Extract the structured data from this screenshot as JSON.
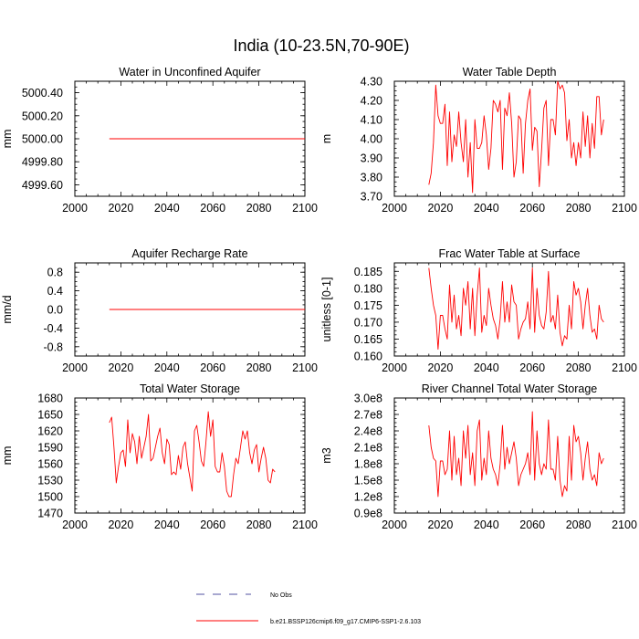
{
  "figure": {
    "title": "India (10-23.5N,70-90E)",
    "line_color": "#ff0000",
    "obs_color": "#5050a0"
  },
  "legend": {
    "items": [
      {
        "label": "No Obs",
        "style": "dashed"
      },
      {
        "label": "b.e21.BSSP126cmip6.f09_g17.CMIP6-SSP1-2.6.103",
        "style": "solid"
      }
    ]
  },
  "chart_data": [
    {
      "type": "line",
      "title": "Water in Unconfined Aquifer",
      "ylabel": "mm",
      "xlim": [
        2000,
        2100
      ],
      "ylim": [
        4999.5,
        5000.5
      ],
      "xticks": [
        "2000",
        "2020",
        "2040",
        "2060",
        "2080",
        "2100"
      ],
      "yticks": [
        4999.6,
        4999.8,
        5000.0,
        5000.2,
        5000.4
      ],
      "ytick_labels": [
        "4999.60",
        "4999.80",
        "5000.00",
        "5000.20",
        "5000.40"
      ],
      "x_start": 2015,
      "values": [
        5000.0,
        5000.0,
        5000.0,
        5000.0,
        5000.0,
        5000.0,
        5000.0,
        5000.0,
        5000.0,
        5000.0,
        5000.0,
        5000.0,
        5000.0,
        5000.0,
        5000.0,
        5000.0,
        5000.0,
        5000.0,
        5000.0,
        5000.0,
        5000.0,
        5000.0,
        5000.0,
        5000.0,
        5000.0,
        5000.0,
        5000.0,
        5000.0,
        5000.0,
        5000.0,
        5000.0,
        5000.0,
        5000.0,
        5000.0,
        5000.0,
        5000.0,
        5000.0,
        5000.0,
        5000.0,
        5000.0,
        5000.0,
        5000.0,
        5000.0,
        5000.0,
        5000.0,
        5000.0,
        5000.0,
        5000.0,
        5000.0,
        5000.0,
        5000.0,
        5000.0,
        5000.0,
        5000.0,
        5000.0,
        5000.0,
        5000.0,
        5000.0,
        5000.0,
        5000.0,
        5000.0,
        5000.0,
        5000.0,
        5000.0,
        5000.0,
        5000.0,
        5000.0,
        5000.0,
        5000.0,
        5000.0,
        5000.0,
        5000.0,
        5000.0,
        5000.0,
        5000.0,
        5000.0,
        5000.0,
        5000.0,
        5000.0,
        5000.0,
        5000.0,
        5000.0,
        5000.0,
        5000.0,
        5000.0,
        5000.0
      ]
    },
    {
      "type": "line",
      "title": "Water Table Depth",
      "ylabel": "m",
      "xlim": [
        2000,
        2100
      ],
      "ylim": [
        3.7,
        4.3
      ],
      "xticks": [
        "2000",
        "2020",
        "2040",
        "2060",
        "2080",
        "2100"
      ],
      "yticks": [
        3.7,
        3.8,
        3.9,
        4.0,
        4.1,
        4.2,
        4.3
      ],
      "ytick_labels": [
        "3.70",
        "3.80",
        "3.90",
        "4.00",
        "4.10",
        "4.20",
        "4.30"
      ],
      "x_start": 2015,
      "values": [
        3.76,
        3.82,
        3.98,
        4.28,
        4.12,
        4.08,
        4.08,
        4.18,
        3.86,
        4.14,
        3.88,
        4.02,
        3.96,
        4.14,
        3.98,
        3.88,
        4.1,
        3.8,
        3.98,
        3.72,
        4.1,
        3.95,
        3.95,
        3.98,
        4.12,
        4.02,
        3.84,
        3.95,
        4.2,
        4.18,
        4.14,
        4.2,
        3.84,
        4.16,
        4.12,
        4.24,
        4.08,
        3.8,
        3.88,
        4.12,
        4.1,
        3.82,
        4.08,
        4.2,
        4.26,
        3.94,
        4.06,
        4.04,
        3.75,
        3.94,
        4.16,
        4.2,
        3.86,
        4.1,
        4.1,
        4.02,
        4.3,
        4.26,
        4.28,
        4.24,
        3.99,
        4.1,
        3.9,
        3.98,
        3.86,
        3.98,
        3.9,
        4.14,
        3.96,
        4.12,
        3.9,
        4.08,
        3.95,
        4.22,
        4.22,
        4.02,
        4.1
      ]
    },
    {
      "type": "line",
      "title": "Aquifer Recharge Rate",
      "ylabel": "mm/d",
      "xlim": [
        2000,
        2100
      ],
      "ylim": [
        -1.0,
        1.0
      ],
      "xticks": [
        "2000",
        "2020",
        "2040",
        "2060",
        "2080",
        "2100"
      ],
      "yticks": [
        -0.8,
        -0.4,
        0.0,
        0.4,
        0.8
      ],
      "ytick_labels": [
        "-0.8",
        "-0.4",
        "0.0",
        "0.4",
        "0.8"
      ],
      "x_start": 2015,
      "values": [
        0.0,
        0.0,
        0.0,
        0.0,
        0.0,
        0.0,
        0.0,
        0.0,
        0.0,
        0.0,
        0.0,
        0.0,
        0.0,
        0.0,
        0.0,
        0.0,
        0.0,
        0.0,
        0.0,
        0.0,
        0.0,
        0.0,
        0.0,
        0.0,
        0.0,
        0.0,
        0.0,
        0.0,
        0.0,
        0.0,
        0.0,
        0.0,
        0.0,
        0.0,
        0.0,
        0.0,
        0.0,
        0.0,
        0.0,
        0.0,
        0.0,
        0.0,
        0.0,
        0.0,
        0.0,
        0.0,
        0.0,
        0.0,
        0.0,
        0.0,
        0.0,
        0.0,
        0.0,
        0.0,
        0.0,
        0.0,
        0.0,
        0.0,
        0.0,
        0.0,
        0.0,
        0.0,
        0.0,
        0.0,
        0.0,
        0.0,
        0.0,
        0.0,
        0.0,
        0.0,
        0.0,
        0.0,
        0.0,
        0.0,
        0.0,
        0.0,
        0.0,
        0.0,
        0.0,
        0.0,
        0.0,
        0.0,
        0.0,
        0.0,
        0.0,
        0.0
      ]
    },
    {
      "type": "line",
      "title": "Frac Water Table at Surface",
      "ylabel": "unitless [0-1]",
      "xlim": [
        2000,
        2100
      ],
      "ylim": [
        0.16,
        0.1875
      ],
      "xticks": [
        "2000",
        "2020",
        "2040",
        "2060",
        "2080",
        "2100"
      ],
      "yticks": [
        0.16,
        0.165,
        0.17,
        0.175,
        0.18,
        0.185
      ],
      "ytick_labels": [
        "0.160",
        "0.165",
        "0.170",
        "0.175",
        "0.180",
        "0.185"
      ],
      "x_start": 2015,
      "values": [
        0.186,
        0.18,
        0.175,
        0.172,
        0.162,
        0.172,
        0.172,
        0.168,
        0.165,
        0.181,
        0.17,
        0.178,
        0.168,
        0.172,
        0.166,
        0.18,
        0.175,
        0.182,
        0.168,
        0.18,
        0.166,
        0.178,
        0.186,
        0.167,
        0.172,
        0.169,
        0.18,
        0.175,
        0.171,
        0.169,
        0.165,
        0.171,
        0.182,
        0.17,
        0.176,
        0.17,
        0.181,
        0.176,
        0.175,
        0.165,
        0.168,
        0.17,
        0.171,
        0.176,
        0.168,
        0.186,
        0.167,
        0.18,
        0.172,
        0.169,
        0.168,
        0.173,
        0.185,
        0.17,
        0.172,
        0.168,
        0.178,
        0.167,
        0.163,
        0.166,
        0.165,
        0.175,
        0.168,
        0.182,
        0.178,
        0.18,
        0.176,
        0.168,
        0.175,
        0.18,
        0.172,
        0.167,
        0.168,
        0.165,
        0.175,
        0.171,
        0.17
      ]
    },
    {
      "type": "line",
      "title": "Total Water Storage",
      "ylabel": "mm",
      "xlim": [
        2000,
        2100
      ],
      "ylim": [
        1470,
        1680
      ],
      "xticks": [
        "2000",
        "2020",
        "2040",
        "2060",
        "2080",
        "2100"
      ],
      "yticks": [
        1470,
        1500,
        1530,
        1560,
        1590,
        1620,
        1650,
        1680
      ],
      "ytick_labels": [
        "1470",
        "1500",
        "1530",
        "1560",
        "1590",
        "1620",
        "1650",
        "1680"
      ],
      "x_start": 2015,
      "values": [
        1635,
        1645,
        1590,
        1525,
        1555,
        1580,
        1585,
        1555,
        1640,
        1580,
        1615,
        1600,
        1560,
        1610,
        1570,
        1590,
        1610,
        1650,
        1565,
        1570,
        1590,
        1610,
        1625,
        1580,
        1560,
        1605,
        1595,
        1540,
        1545,
        1540,
        1575,
        1550,
        1590,
        1600,
        1560,
        1535,
        1510,
        1620,
        1630,
        1600,
        1565,
        1555,
        1600,
        1655,
        1610,
        1640,
        1555,
        1545,
        1545,
        1580,
        1555,
        1510,
        1500,
        1500,
        1540,
        1570,
        1560,
        1590,
        1620,
        1605,
        1620,
        1580,
        1560,
        1585,
        1595,
        1545,
        1570,
        1590,
        1570,
        1530,
        1525,
        1550,
        1545
      ]
    },
    {
      "type": "line",
      "title": "River Channel Total Water Storage",
      "ylabel": "m3",
      "xlim": [
        2000,
        2100
      ],
      "ylim": [
        0.9,
        3.0
      ],
      "xticks": [
        "2000",
        "2020",
        "2040",
        "2060",
        "2080",
        "2100"
      ],
      "yticks": [
        0.9,
        1.2,
        1.5,
        1.8,
        2.1,
        2.4,
        2.7,
        3.0
      ],
      "ytick_labels": [
        "0.9e8",
        "1.2e8",
        "1.5e8",
        "1.8e8",
        "2.1e8",
        "2.4e8",
        "2.7e8",
        "3.0e8"
      ],
      "x_start": 2015,
      "values": [
        2.5,
        2.1,
        1.9,
        1.85,
        1.2,
        1.85,
        1.85,
        1.6,
        1.7,
        2.4,
        1.5,
        2.3,
        1.6,
        1.9,
        1.4,
        2.4,
        1.9,
        2.5,
        1.6,
        2.0,
        1.4,
        2.4,
        2.6,
        1.5,
        1.9,
        1.6,
        2.4,
        1.9,
        1.7,
        1.6,
        1.4,
        1.8,
        2.5,
        1.7,
        2.1,
        1.8,
        2.0,
        2.2,
        1.9,
        1.4,
        1.6,
        1.7,
        1.8,
        2.0,
        1.6,
        2.75,
        1.5,
        2.4,
        1.8,
        1.6,
        1.8,
        1.7,
        2.6,
        1.7,
        1.7,
        1.5,
        2.3,
        1.5,
        1.2,
        1.4,
        1.3,
        2.3,
        1.5,
        2.5,
        2.2,
        2.3,
        2.0,
        1.5,
        1.9,
        2.2,
        1.7,
        1.5,
        1.6,
        1.4,
        2.0,
        1.8,
        1.9
      ]
    }
  ]
}
